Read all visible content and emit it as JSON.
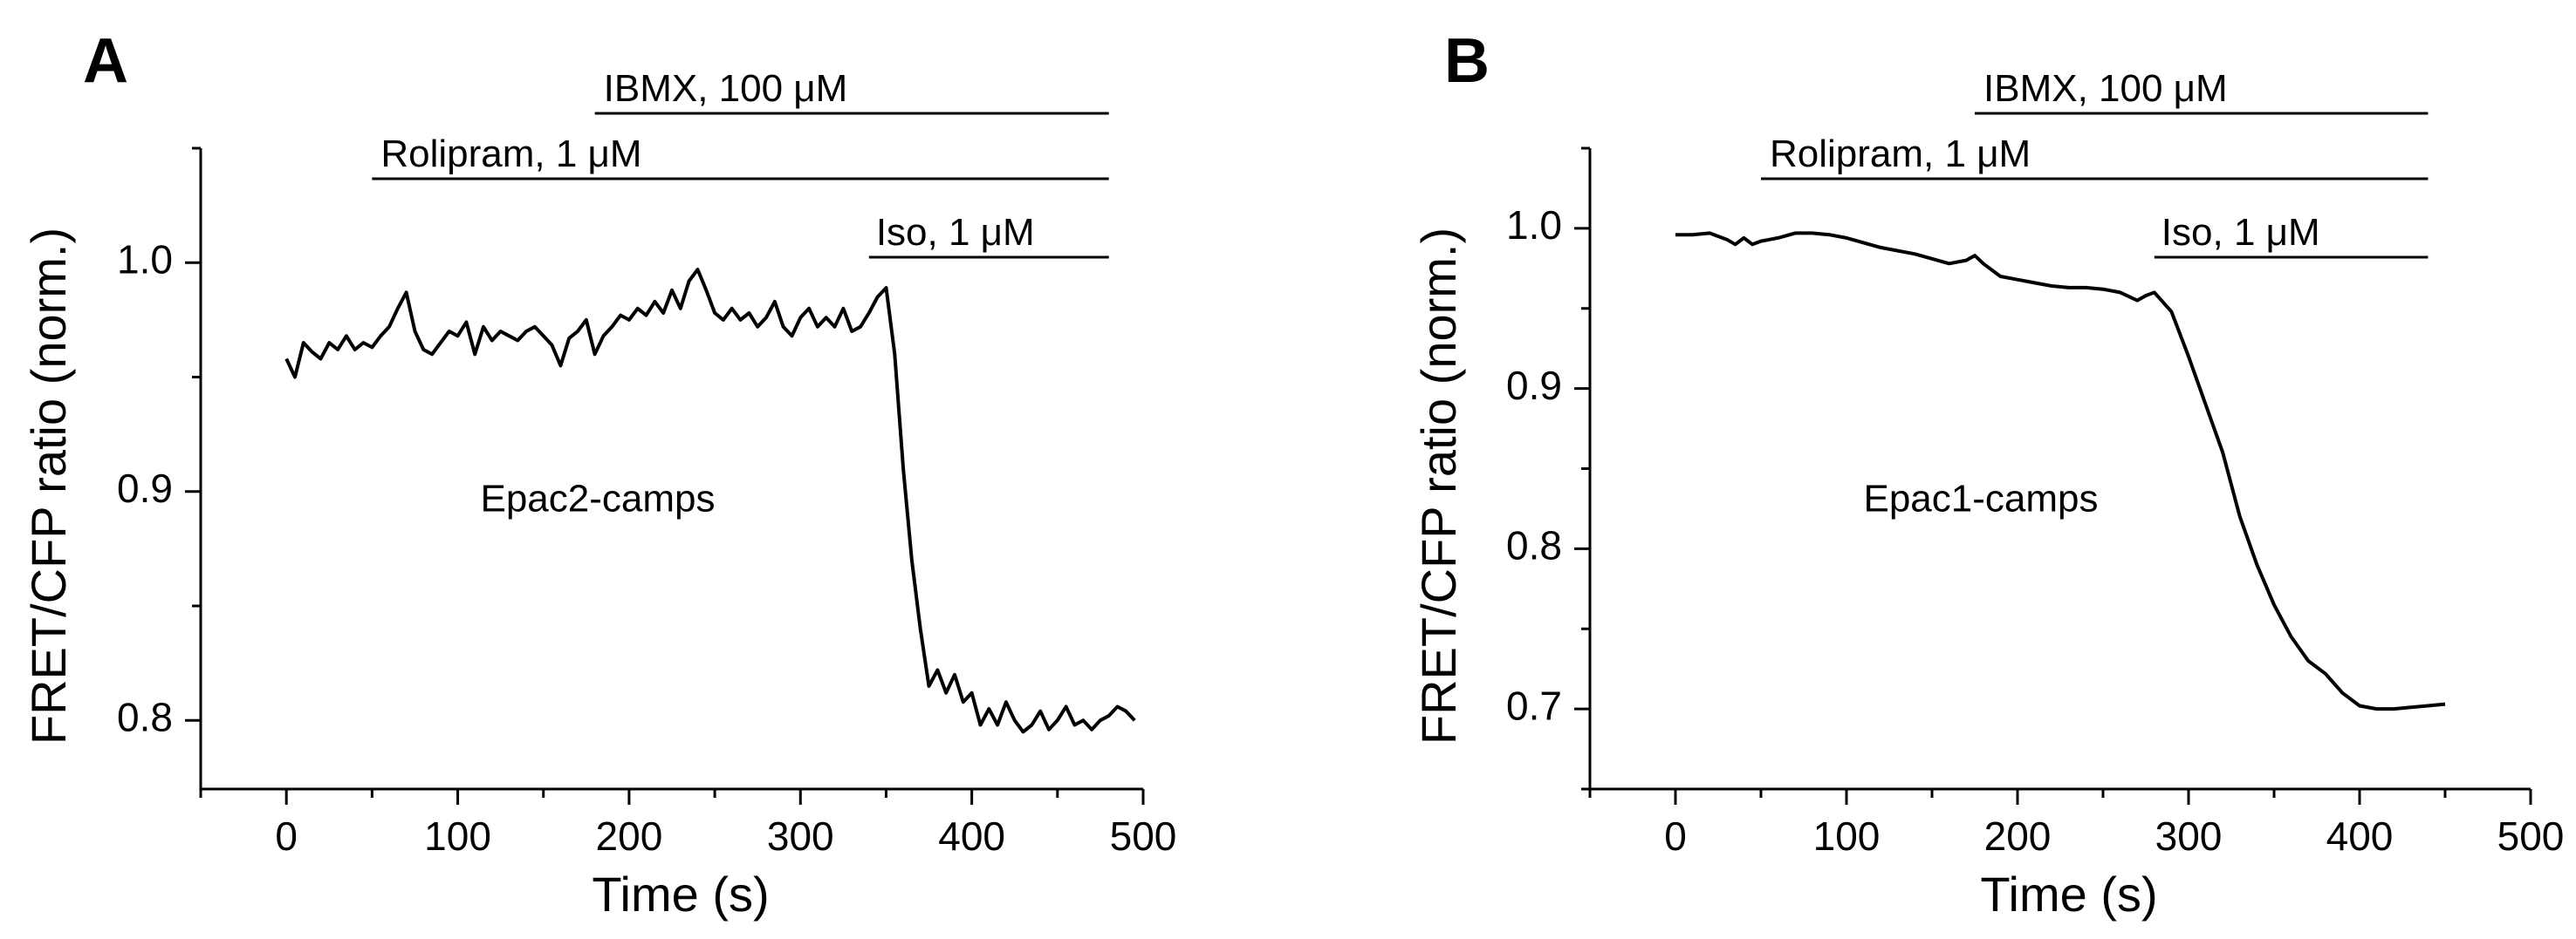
{
  "chart_data": [
    {
      "type": "line",
      "panel_label": "A",
      "xlabel": "Time (s)",
      "ylabel": "FRET/CFP ratio (norm.)",
      "xlim": [
        -50,
        500
      ],
      "ylim": [
        0.77,
        1.05
      ],
      "xticks": [
        0,
        100,
        200,
        300,
        400,
        500
      ],
      "yticks": [
        0.8,
        0.9,
        1.0
      ],
      "xtick_labels": [
        "0",
        "100",
        "200",
        "300",
        "400",
        "500"
      ],
      "ytick_labels": [
        "0.8",
        "0.9",
        "1.0"
      ],
      "inner_label": "Epac2-camps",
      "treatments": [
        {
          "label": "IBMX, 100 μM",
          "start": 180,
          "end": 480
        },
        {
          "label": "Rolipram, 1 μM",
          "start": 50,
          "end": 480
        },
        {
          "label": "Iso, 1 μM",
          "start": 340,
          "end": 480
        }
      ],
      "series": [
        {
          "name": "Epac2-camps",
          "points": [
            [
              0,
              0.958
            ],
            [
              5,
              0.95
            ],
            [
              10,
              0.965
            ],
            [
              15,
              0.961
            ],
            [
              20,
              0.958
            ],
            [
              25,
              0.965
            ],
            [
              30,
              0.962
            ],
            [
              35,
              0.968
            ],
            [
              40,
              0.962
            ],
            [
              45,
              0.965
            ],
            [
              50,
              0.963
            ],
            [
              55,
              0.968
            ],
            [
              60,
              0.972
            ],
            [
              65,
              0.98
            ],
            [
              70,
              0.987
            ],
            [
              75,
              0.97
            ],
            [
              80,
              0.962
            ],
            [
              85,
              0.96
            ],
            [
              90,
              0.965
            ],
            [
              95,
              0.97
            ],
            [
              100,
              0.968
            ],
            [
              105,
              0.974
            ],
            [
              110,
              0.96
            ],
            [
              115,
              0.972
            ],
            [
              120,
              0.966
            ],
            [
              125,
              0.97
            ],
            [
              130,
              0.968
            ],
            [
              135,
              0.966
            ],
            [
              140,
              0.97
            ],
            [
              145,
              0.972
            ],
            [
              150,
              0.968
            ],
            [
              155,
              0.964
            ],
            [
              160,
              0.955
            ],
            [
              165,
              0.967
            ],
            [
              170,
              0.97
            ],
            [
              175,
              0.975
            ],
            [
              180,
              0.96
            ],
            [
              185,
              0.968
            ],
            [
              190,
              0.972
            ],
            [
              195,
              0.977
            ],
            [
              200,
              0.975
            ],
            [
              205,
              0.98
            ],
            [
              210,
              0.977
            ],
            [
              215,
              0.983
            ],
            [
              220,
              0.978
            ],
            [
              225,
              0.988
            ],
            [
              230,
              0.98
            ],
            [
              235,
              0.992
            ],
            [
              240,
              0.997
            ],
            [
              245,
              0.988
            ],
            [
              250,
              0.978
            ],
            [
              255,
              0.975
            ],
            [
              260,
              0.98
            ],
            [
              265,
              0.975
            ],
            [
              270,
              0.978
            ],
            [
              275,
              0.972
            ],
            [
              280,
              0.976
            ],
            [
              285,
              0.983
            ],
            [
              290,
              0.972
            ],
            [
              295,
              0.968
            ],
            [
              300,
              0.976
            ],
            [
              305,
              0.98
            ],
            [
              310,
              0.972
            ],
            [
              315,
              0.976
            ],
            [
              320,
              0.972
            ],
            [
              325,
              0.98
            ],
            [
              330,
              0.97
            ],
            [
              335,
              0.972
            ],
            [
              340,
              0.978
            ],
            [
              345,
              0.985
            ],
            [
              350,
              0.989
            ],
            [
              355,
              0.96
            ],
            [
              360,
              0.91
            ],
            [
              365,
              0.87
            ],
            [
              370,
              0.84
            ],
            [
              375,
              0.815
            ],
            [
              380,
              0.822
            ],
            [
              385,
              0.812
            ],
            [
              390,
              0.82
            ],
            [
              395,
              0.808
            ],
            [
              400,
              0.812
            ],
            [
              405,
              0.798
            ],
            [
              410,
              0.805
            ],
            [
              415,
              0.798
            ],
            [
              420,
              0.808
            ],
            [
              425,
              0.8
            ],
            [
              430,
              0.795
            ],
            [
              435,
              0.798
            ],
            [
              440,
              0.804
            ],
            [
              445,
              0.796
            ],
            [
              450,
              0.8
            ],
            [
              455,
              0.806
            ],
            [
              460,
              0.798
            ],
            [
              465,
              0.8
            ],
            [
              470,
              0.796
            ],
            [
              475,
              0.8
            ],
            [
              480,
              0.802
            ],
            [
              485,
              0.806
            ],
            [
              490,
              0.804
            ],
            [
              495,
              0.8
            ]
          ]
        }
      ]
    },
    {
      "type": "line",
      "panel_label": "B",
      "xlabel": "Time (s)",
      "ylabel": "FRET/CFP ratio (norm.)",
      "xlim": [
        -50,
        500
      ],
      "ylim": [
        0.65,
        1.05
      ],
      "xticks": [
        0,
        100,
        200,
        300,
        400,
        500
      ],
      "yticks": [
        0.7,
        0.8,
        0.9,
        1.0
      ],
      "xtick_labels": [
        "0",
        "100",
        "200",
        "300",
        "400",
        "500"
      ],
      "ytick_labels": [
        "0.7",
        "0.8",
        "0.9",
        "1.0"
      ],
      "inner_label": "Epac1-camps",
      "treatments": [
        {
          "label": "IBMX, 100 μM",
          "start": 175,
          "end": 440
        },
        {
          "label": "Rolipram, 1 μM",
          "start": 50,
          "end": 440
        },
        {
          "label": "Iso, 1 μM",
          "start": 280,
          "end": 440
        }
      ],
      "series": [
        {
          "name": "Epac1-camps",
          "points": [
            [
              0,
              0.996
            ],
            [
              10,
              0.996
            ],
            [
              20,
              0.997
            ],
            [
              30,
              0.993
            ],
            [
              35,
              0.99
            ],
            [
              40,
              0.994
            ],
            [
              45,
              0.99
            ],
            [
              50,
              0.992
            ],
            [
              60,
              0.994
            ],
            [
              70,
              0.997
            ],
            [
              80,
              0.997
            ],
            [
              90,
              0.996
            ],
            [
              100,
              0.994
            ],
            [
              110,
              0.991
            ],
            [
              120,
              0.988
            ],
            [
              130,
              0.986
            ],
            [
              140,
              0.984
            ],
            [
              150,
              0.981
            ],
            [
              160,
              0.978
            ],
            [
              170,
              0.98
            ],
            [
              175,
              0.983
            ],
            [
              180,
              0.978
            ],
            [
              190,
              0.97
            ],
            [
              200,
              0.968
            ],
            [
              210,
              0.966
            ],
            [
              220,
              0.964
            ],
            [
              230,
              0.963
            ],
            [
              240,
              0.963
            ],
            [
              250,
              0.962
            ],
            [
              260,
              0.96
            ],
            [
              270,
              0.955
            ],
            [
              275,
              0.958
            ],
            [
              280,
              0.96
            ],
            [
              290,
              0.948
            ],
            [
              300,
              0.92
            ],
            [
              310,
              0.89
            ],
            [
              320,
              0.86
            ],
            [
              330,
              0.82
            ],
            [
              340,
              0.79
            ],
            [
              350,
              0.765
            ],
            [
              360,
              0.745
            ],
            [
              370,
              0.73
            ],
            [
              380,
              0.722
            ],
            [
              390,
              0.71
            ],
            [
              400,
              0.702
            ],
            [
              410,
              0.7
            ],
            [
              420,
              0.7
            ],
            [
              430,
              0.701
            ],
            [
              440,
              0.702
            ],
            [
              450,
              0.703
            ]
          ]
        }
      ]
    }
  ]
}
